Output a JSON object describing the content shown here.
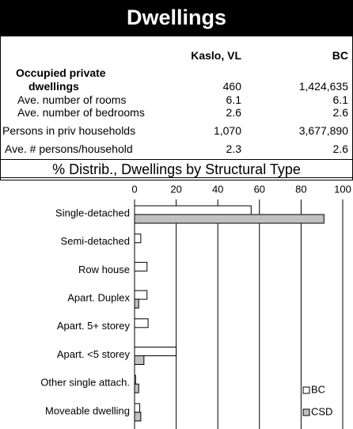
{
  "header": {
    "title": "Dwellings"
  },
  "table": {
    "columns": [
      "Kaslo, VL",
      "BC"
    ],
    "rows": [
      {
        "label": "Occupied private dwellings",
        "values": [
          "460",
          "1,424,635"
        ]
      },
      {
        "label": "Ave. number of rooms",
        "values": [
          "6.1",
          "6.1"
        ]
      },
      {
        "label": "Ave. number of bedrooms",
        "values": [
          "2.6",
          "2.6"
        ]
      },
      {
        "label": "Persons in priv households",
        "values": [
          "1,070",
          "3,677,890"
        ]
      },
      {
        "label": "Ave. # persons/household",
        "values": [
          "2.3",
          "2.6"
        ]
      }
    ]
  },
  "chart_data": {
    "type": "bar",
    "orientation": "horizontal",
    "title": "% Distrib., Dwellings by Structural Type",
    "categories": [
      "Single-detached",
      "Semi-detached",
      "Row house",
      "Apart. Duplex",
      "Apart. 5+ storey",
      "Apart. <5 storey",
      "Other single attach.",
      "Moveable dwelling"
    ],
    "series": [
      {
        "name": "BC",
        "color": "#ffffff",
        "values": [
          56,
          3,
          6,
          6,
          6.5,
          20,
          0.5,
          2.5
        ]
      },
      {
        "name": "CSD",
        "color": "#c0c0c0",
        "values": [
          91,
          0,
          0,
          2,
          0,
          4.5,
          2,
          3
        ]
      }
    ],
    "xlim": [
      0,
      100
    ],
    "xticks": [
      0,
      20,
      40,
      60,
      80,
      100
    ],
    "grid": true,
    "legend": "lower right"
  }
}
